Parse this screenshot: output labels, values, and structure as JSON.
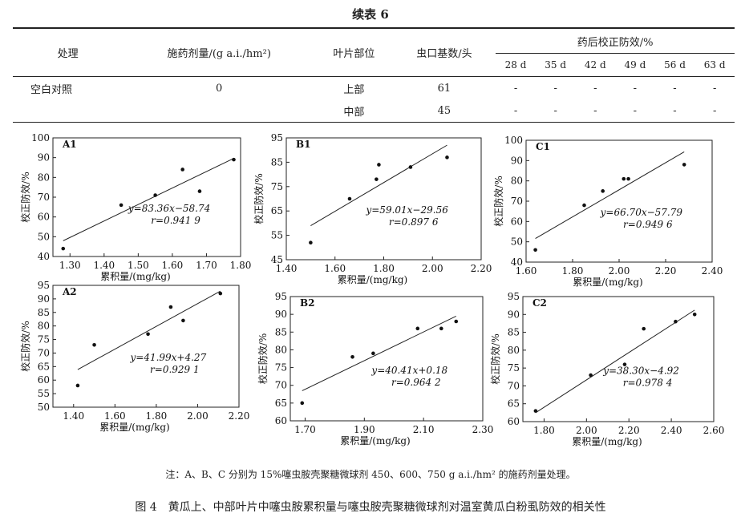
{
  "title": "续表 6",
  "table": {
    "headers": {
      "treatment": "处理",
      "dose": "施药剂量/(g a.i./hm²)",
      "leaf": "叶片部位",
      "base": "虫口基数/头",
      "efficacy": "药后校正防效/%",
      "days": [
        "28 d",
        "35 d",
        "42 d",
        "49 d",
        "56 d",
        "63 d"
      ]
    },
    "rows": [
      {
        "treatment": "空白对照",
        "dose": "0",
        "leaf": "上部",
        "base": "61",
        "values": [
          "-",
          "-",
          "-",
          "-",
          "-",
          "-"
        ]
      },
      {
        "treatment": "",
        "dose": "",
        "leaf": "中部",
        "base": "45",
        "values": [
          "-",
          "-",
          "-",
          "-",
          "-",
          "-"
        ]
      }
    ]
  },
  "chart_data": [
    {
      "type": "scatter",
      "panel": "A1",
      "xlabel": "累积量/(mg/kg)",
      "ylabel": "校正防效/%",
      "xlim": [
        1.25,
        1.8
      ],
      "ylim": [
        40,
        100
      ],
      "xticks": [
        "1.30",
        "1.40",
        "1.50",
        "1.60",
        "1.70",
        "1.80"
      ],
      "yticks": [
        "40",
        "50",
        "60",
        "70",
        "80",
        "90",
        "100"
      ],
      "points": [
        [
          1.28,
          44
        ],
        [
          1.45,
          66
        ],
        [
          1.55,
          71
        ],
        [
          1.63,
          84
        ],
        [
          1.68,
          73
        ],
        [
          1.78,
          89
        ]
      ],
      "fit": {
        "slope": 83.36,
        "intercept": -58.74
      },
      "equation": [
        "y=83.36x−58.74",
        "r=0.941 9"
      ]
    },
    {
      "type": "scatter",
      "panel": "B1",
      "xlabel": "累积量/(mg/kg)",
      "ylabel": "校正防效/%",
      "xlim": [
        1.4,
        2.2
      ],
      "ylim": [
        45,
        95
      ],
      "xticks": [
        "1.40",
        "1.60",
        "1.80",
        "2.00",
        "2.20"
      ],
      "yticks": [
        "45",
        "55",
        "65",
        "75",
        "85",
        "95"
      ],
      "points": [
        [
          1.5,
          52
        ],
        [
          1.66,
          70
        ],
        [
          1.77,
          78
        ],
        [
          1.78,
          84
        ],
        [
          1.91,
          83
        ],
        [
          2.06,
          87
        ]
      ],
      "fit": {
        "slope": 59.01,
        "intercept": -29.56
      },
      "equation": [
        "y=59.01x−29.56",
        "r=0.897 6"
      ]
    },
    {
      "type": "scatter",
      "panel": "C1",
      "xlabel": "累积量/(mg/kg)",
      "ylabel": "校正防效/%",
      "xlim": [
        1.6,
        2.4
      ],
      "ylim": [
        40,
        100
      ],
      "xticks": [
        "1.60",
        "1.80",
        "2.00",
        "2.20",
        "2.40"
      ],
      "yticks": [
        "40",
        "50",
        "60",
        "70",
        "80",
        "90",
        "100"
      ],
      "points": [
        [
          1.64,
          46
        ],
        [
          1.85,
          68
        ],
        [
          1.93,
          75
        ],
        [
          2.02,
          81
        ],
        [
          2.04,
          81
        ],
        [
          2.28,
          88
        ]
      ],
      "fit": {
        "slope": 66.7,
        "intercept": -57.79
      },
      "equation": [
        "y=66.70x−57.79",
        "r=0.949 6"
      ]
    },
    {
      "type": "scatter",
      "panel": "A2",
      "xlabel": "累积量/(mg/kg)",
      "ylabel": "校正防效/%",
      "xlim": [
        1.3,
        2.2
      ],
      "ylim": [
        50,
        95
      ],
      "xticks": [
        "1.40",
        "1.60",
        "1.80",
        "2.00",
        "2.20"
      ],
      "yticks": [
        "50",
        "55",
        "60",
        "65",
        "70",
        "75",
        "80",
        "85",
        "90",
        "95"
      ],
      "points": [
        [
          1.42,
          58
        ],
        [
          1.5,
          73
        ],
        [
          1.76,
          77
        ],
        [
          1.87,
          87
        ],
        [
          1.93,
          82
        ],
        [
          2.11,
          92
        ]
      ],
      "fit": {
        "slope": 41.99,
        "intercept": 4.27
      },
      "equation": [
        "y=41.99x+4.27",
        "r=0.929 1"
      ]
    },
    {
      "type": "scatter",
      "panel": "B2",
      "xlabel": "累积量/(mg/kg)",
      "ylabel": "校正防效/%",
      "xlim": [
        1.65,
        2.3
      ],
      "ylim": [
        60,
        95
      ],
      "xticks": [
        "1.70",
        "1.90",
        "2.10",
        "2.30"
      ],
      "yticks": [
        "60",
        "65",
        "70",
        "75",
        "80",
        "85",
        "90",
        "95"
      ],
      "points": [
        [
          1.69,
          65
        ],
        [
          1.86,
          78
        ],
        [
          1.93,
          79
        ],
        [
          2.08,
          86
        ],
        [
          2.16,
          86
        ],
        [
          2.21,
          88
        ]
      ],
      "fit": {
        "slope": 40.41,
        "intercept": 0.18
      },
      "equation": [
        "y=40.41x+0.18",
        "r=0.964 2"
      ]
    },
    {
      "type": "scatter",
      "panel": "C2",
      "xlabel": "累积量/(mg/kg)",
      "ylabel": "校正防效/%",
      "xlim": [
        1.7,
        2.6
      ],
      "ylim": [
        60,
        95
      ],
      "xticks": [
        "1.80",
        "2.00",
        "2.20",
        "2.40",
        "2.60"
      ],
      "yticks": [
        "60",
        "65",
        "70",
        "75",
        "80",
        "85",
        "90",
        "95"
      ],
      "points": [
        [
          1.76,
          63
        ],
        [
          2.02,
          73
        ],
        [
          2.18,
          76
        ],
        [
          2.27,
          86
        ],
        [
          2.42,
          88
        ],
        [
          2.51,
          90
        ]
      ],
      "fit": {
        "slope": 38.3,
        "intercept": -4.92
      },
      "equation": [
        "y=38.30x−4.92",
        "r=0.978 4"
      ]
    }
  ],
  "note": "注：A、B、C 分别为 15%噻虫胺壳聚糖微球剂 450、600、750 g a.i./hm² 的施药剂量处理。",
  "caption": "图 4　黄瓜上、中部叶片中噻虫胺累积量与噻虫胺壳聚糖微球剂对温室黄瓜白粉虱防效的相关性"
}
